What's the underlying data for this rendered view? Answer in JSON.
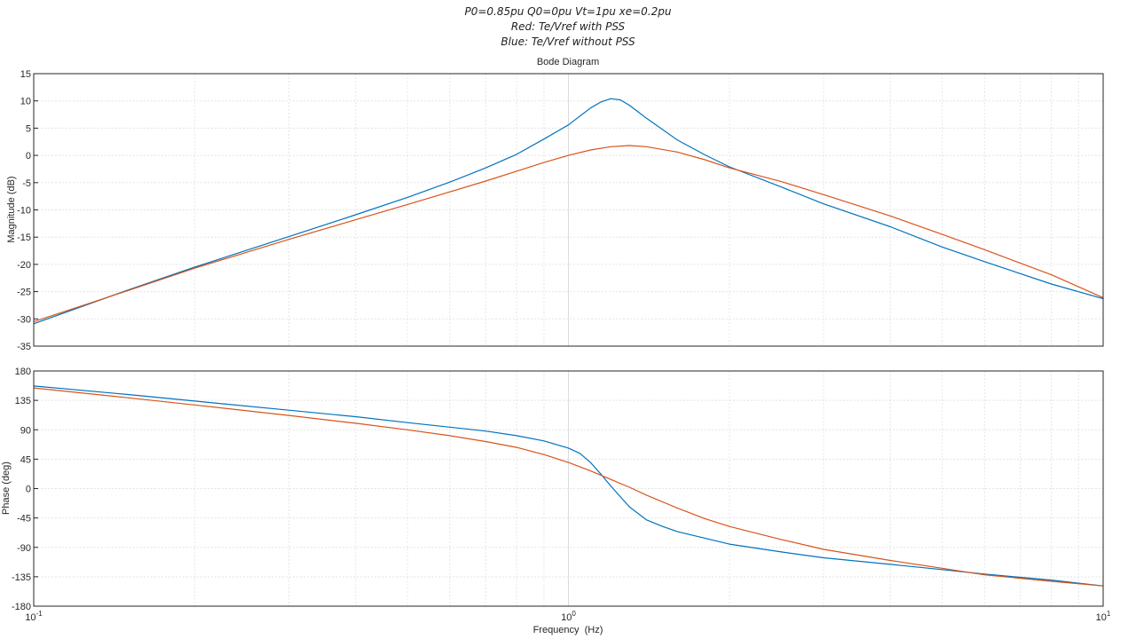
{
  "header": {
    "line1": "P0=0.85pu Q0=0pu Vt=1pu xe=0.2pu",
    "line2": "Red: Te/Vref with PSS",
    "line3": "Blue: Te/Vref without PSS"
  },
  "chart_data": [
    {
      "type": "line",
      "title": "Bode Diagram",
      "xlabel": "",
      "ylabel": "Magnitude (dB)",
      "xscale": "log",
      "xlim": [
        0.1,
        10
      ],
      "ylim": [
        -35,
        15
      ],
      "yticks": [
        15,
        10,
        5,
        0,
        -5,
        -10,
        -15,
        -20,
        -25,
        -30,
        -35
      ],
      "grid": true,
      "series": [
        {
          "name": "",
          "color": "#0072BD",
          "x": [
            0.1,
            0.15,
            0.2,
            0.3,
            0.4,
            0.5,
            0.6,
            0.7,
            0.8,
            0.9,
            1.0,
            1.1,
            1.15,
            1.2,
            1.25,
            1.3,
            1.4,
            1.6,
            1.8,
            2.0,
            2.5,
            3,
            4,
            5,
            6,
            8,
            10
          ],
          "values": [
            -30.9,
            -24.7,
            -20.5,
            -14.9,
            -10.9,
            -7.7,
            -4.9,
            -2.3,
            0.2,
            3.0,
            5.6,
            8.7,
            9.8,
            10.4,
            10.2,
            9.2,
            6.8,
            2.8,
            0.1,
            -2.1,
            -5.8,
            -8.9,
            -13.1,
            -16.8,
            -19.5,
            -23.6,
            -26.3
          ]
        },
        {
          "name": "",
          "color": "#D95319",
          "x": [
            0.1,
            0.15,
            0.2,
            0.3,
            0.4,
            0.5,
            0.6,
            0.7,
            0.8,
            0.9,
            1.0,
            1.1,
            1.2,
            1.3,
            1.4,
            1.6,
            1.8,
            2.0,
            2.5,
            3,
            4,
            5,
            6,
            8,
            10
          ],
          "values": [
            -30.5,
            -24.8,
            -20.7,
            -15.4,
            -11.8,
            -9.0,
            -6.7,
            -4.7,
            -2.9,
            -1.3,
            0.0,
            1.0,
            1.6,
            1.8,
            1.6,
            0.6,
            -0.8,
            -2.3,
            -4.8,
            -7.2,
            -11.1,
            -14.5,
            -17.3,
            -21.9,
            -26.1
          ]
        }
      ]
    },
    {
      "type": "line",
      "title": "",
      "xlabel": "Frequency  (Hz)",
      "ylabel": "Phase (deg)",
      "xscale": "log",
      "xlim": [
        0.1,
        10
      ],
      "ylim": [
        -180,
        180
      ],
      "yticks": [
        180,
        135,
        90,
        45,
        0,
        -45,
        -90,
        -135,
        -180
      ],
      "grid": true,
      "series": [
        {
          "name": "",
          "color": "#0072BD",
          "x": [
            0.1,
            0.15,
            0.2,
            0.3,
            0.4,
            0.5,
            0.6,
            0.7,
            0.8,
            0.9,
            1.0,
            1.05,
            1.1,
            1.15,
            1.2,
            1.3,
            1.4,
            1.5,
            1.6,
            1.8,
            2.0,
            2.5,
            3,
            4,
            5,
            6,
            8,
            10
          ],
          "values": [
            157,
            144,
            134,
            120,
            110,
            101,
            94,
            88,
            81,
            73,
            62,
            54,
            40,
            22,
            4,
            -28,
            -48,
            -58,
            -66,
            -76,
            -85,
            -97,
            -106,
            -116,
            -124,
            -131,
            -140,
            -149
          ]
        },
        {
          "name": "",
          "color": "#D95319",
          "x": [
            0.1,
            0.15,
            0.2,
            0.3,
            0.4,
            0.5,
            0.6,
            0.7,
            0.8,
            0.9,
            1.0,
            1.1,
            1.2,
            1.3,
            1.4,
            1.6,
            1.8,
            2.0,
            2.5,
            3,
            4,
            5,
            6,
            8,
            10
          ],
          "values": [
            154,
            139,
            128,
            112,
            100,
            90,
            81,
            72,
            63,
            52,
            40,
            27,
            14,
            2,
            -10,
            -30,
            -46,
            -58,
            -78,
            -93,
            -110,
            -122,
            -132,
            -142,
            -149
          ]
        }
      ]
    }
  ]
}
